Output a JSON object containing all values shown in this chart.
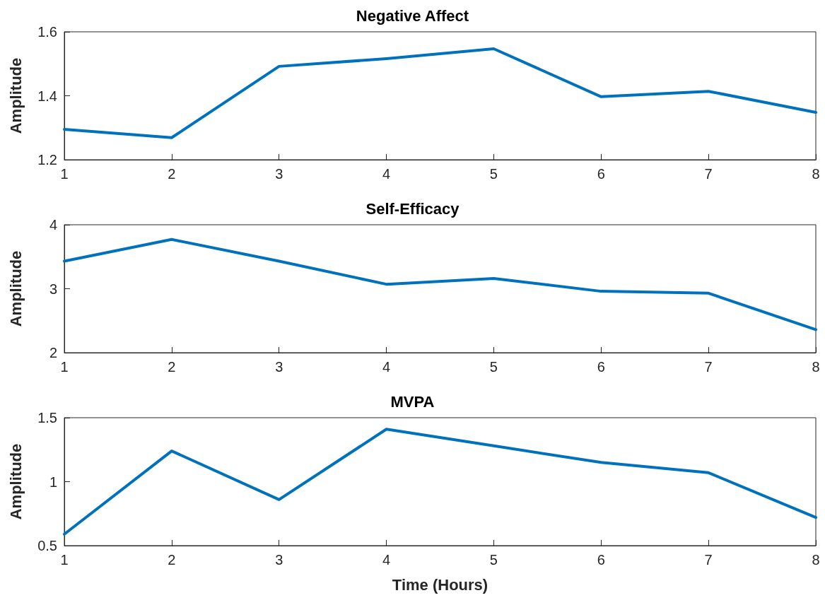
{
  "chart_data": [
    {
      "type": "line",
      "title": "Negative Affect",
      "ylabel": "Amplitude",
      "x": [
        1,
        2,
        3,
        4,
        5,
        6,
        7,
        8
      ],
      "series": [
        {
          "color": "#0072bd",
          "values": [
            1.295,
            1.269,
            1.492,
            1.516,
            1.547,
            1.397,
            1.414,
            1.348
          ]
        }
      ],
      "xlim": [
        1,
        8
      ],
      "xticks": [
        1,
        2,
        3,
        4,
        5,
        6,
        7,
        8
      ],
      "ylim": [
        1.2,
        1.6
      ],
      "yticks": [
        1.2,
        1.4,
        1.6
      ],
      "grid": false,
      "marker": "none",
      "line_style": "solid"
    },
    {
      "type": "line",
      "title": "Self-Efficacy",
      "ylabel": "Amplitude",
      "x": [
        1,
        2,
        3,
        4,
        5,
        6,
        7,
        8
      ],
      "series": [
        {
          "color": "#0072bd",
          "values": [
            3.43,
            3.77,
            3.43,
            3.07,
            3.16,
            2.96,
            2.93,
            2.36
          ]
        }
      ],
      "xlim": [
        1,
        8
      ],
      "xticks": [
        1,
        2,
        3,
        4,
        5,
        6,
        7,
        8
      ],
      "ylim": [
        2,
        4
      ],
      "yticks": [
        2,
        3,
        4
      ],
      "grid": false,
      "marker": "none",
      "line_style": "solid"
    },
    {
      "type": "line",
      "title": "MVPA",
      "xlabel": "Time (Hours)",
      "ylabel": "Amplitude",
      "x": [
        1,
        2,
        3,
        4,
        5,
        6,
        7,
        8
      ],
      "series": [
        {
          "color": "#0072bd",
          "values": [
            0.59,
            1.24,
            0.86,
            1.41,
            1.28,
            1.15,
            1.07,
            0.72
          ]
        }
      ],
      "xlim": [
        1,
        8
      ],
      "xticks": [
        1,
        2,
        3,
        4,
        5,
        6,
        7,
        8
      ],
      "ylim": [
        0.5,
        1.5
      ],
      "yticks": [
        0.5,
        1,
        1.5
      ],
      "grid": false,
      "marker": "none",
      "line_style": "solid"
    }
  ]
}
